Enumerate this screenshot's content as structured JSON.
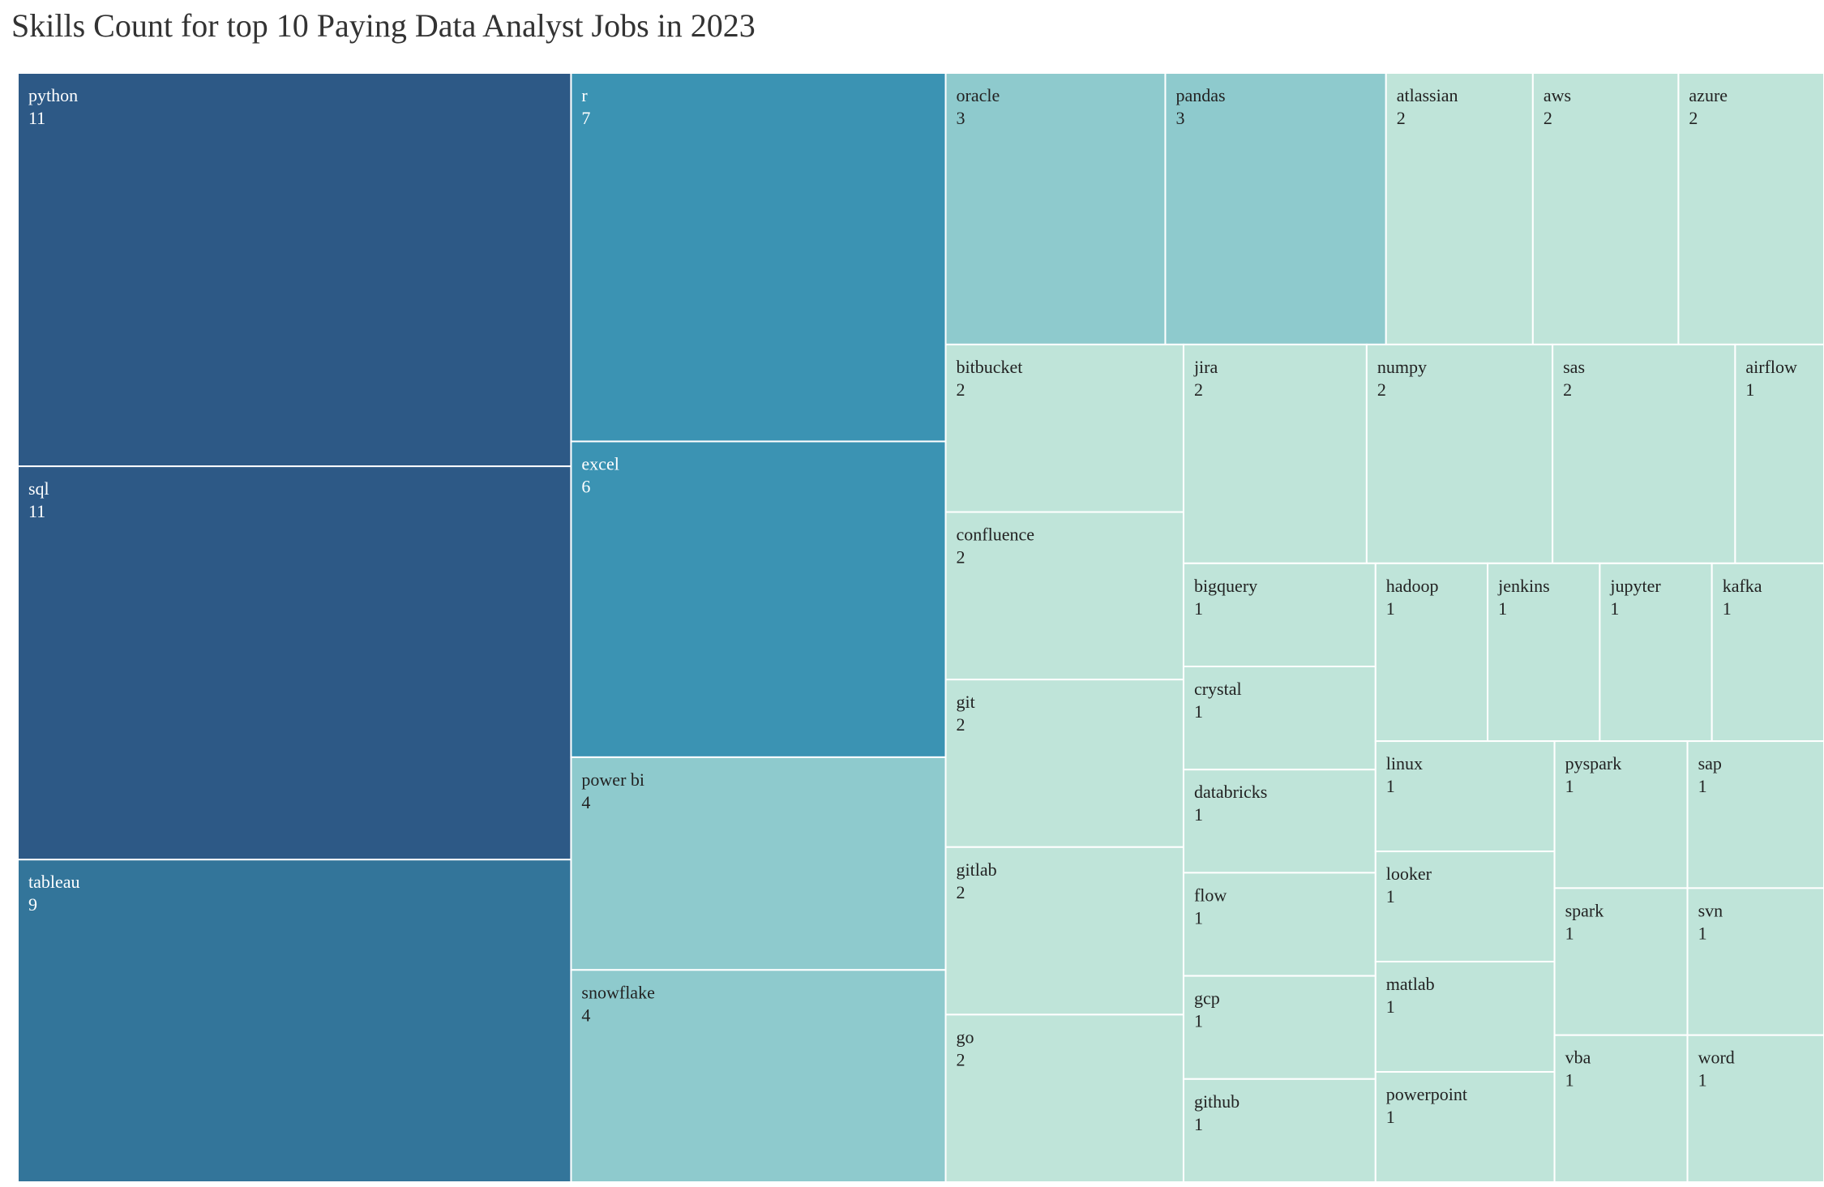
{
  "chart_data": {
    "type": "treemap",
    "title": "Skills Count for top 10 Paying Data Analyst Jobs in 2023",
    "color_scale": [
      "#bfe4d9",
      "#8ecacd",
      "#3b93b3",
      "#33759a",
      "#2d5986"
    ],
    "items": [
      {
        "name": "python",
        "value": 11
      },
      {
        "name": "sql",
        "value": 11
      },
      {
        "name": "tableau",
        "value": 9
      },
      {
        "name": "r",
        "value": 7
      },
      {
        "name": "excel",
        "value": 6
      },
      {
        "name": "power bi",
        "value": 4
      },
      {
        "name": "snowflake",
        "value": 4
      },
      {
        "name": "oracle",
        "value": 3
      },
      {
        "name": "pandas",
        "value": 3
      },
      {
        "name": "atlassian",
        "value": 2
      },
      {
        "name": "aws",
        "value": 2
      },
      {
        "name": "azure",
        "value": 2
      },
      {
        "name": "bitbucket",
        "value": 2
      },
      {
        "name": "confluence",
        "value": 2
      },
      {
        "name": "git",
        "value": 2
      },
      {
        "name": "gitlab",
        "value": 2
      },
      {
        "name": "go",
        "value": 2
      },
      {
        "name": "jira",
        "value": 2
      },
      {
        "name": "numpy",
        "value": 2
      },
      {
        "name": "sas",
        "value": 2
      },
      {
        "name": "airflow",
        "value": 1
      },
      {
        "name": "bigquery",
        "value": 1
      },
      {
        "name": "crystal",
        "value": 1
      },
      {
        "name": "databricks",
        "value": 1
      },
      {
        "name": "flow",
        "value": 1
      },
      {
        "name": "gcp",
        "value": 1
      },
      {
        "name": "github",
        "value": 1
      },
      {
        "name": "hadoop",
        "value": 1
      },
      {
        "name": "jenkins",
        "value": 1
      },
      {
        "name": "jupyter",
        "value": 1
      },
      {
        "name": "kafka",
        "value": 1
      },
      {
        "name": "linux",
        "value": 1
      },
      {
        "name": "looker",
        "value": 1
      },
      {
        "name": "matlab",
        "value": 1
      },
      {
        "name": "powerpoint",
        "value": 1
      },
      {
        "name": "pyspark",
        "value": 1
      },
      {
        "name": "spark",
        "value": 1
      },
      {
        "name": "vba",
        "value": 1
      },
      {
        "name": "sap",
        "value": 1
      },
      {
        "name": "svn",
        "value": 1
      },
      {
        "name": "word",
        "value": 1
      }
    ]
  }
}
